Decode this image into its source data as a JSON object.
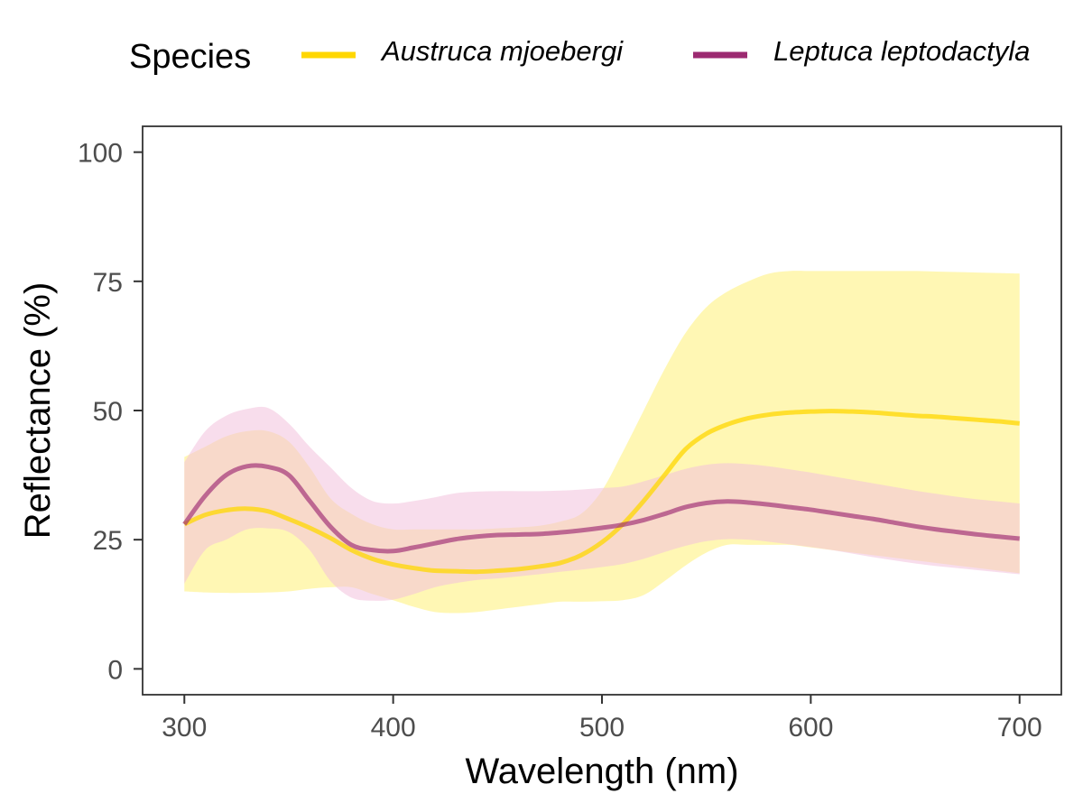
{
  "chart_data": {
    "type": "line",
    "xlabel": "Wavelength (nm)",
    "ylabel": "Reflectance (%)",
    "xlim": [
      280,
      720
    ],
    "ylim": [
      -5,
      105
    ],
    "x_ticks": [
      300,
      400,
      500,
      600,
      700
    ],
    "y_ticks": [
      0,
      25,
      50,
      75,
      100
    ],
    "grid": false,
    "legend": {
      "title": "Species",
      "position": "top"
    },
    "series": [
      {
        "name": "Austruca mjoebergi",
        "color": "#FFD700",
        "band_color": "#FFF176",
        "x": [
          300,
          310,
          320,
          330,
          340,
          350,
          360,
          370,
          380,
          390,
          400,
          410,
          420,
          430,
          440,
          450,
          460,
          470,
          480,
          490,
          500,
          510,
          520,
          530,
          540,
          550,
          560,
          570,
          580,
          590,
          600,
          610,
          620,
          630,
          640,
          650,
          660,
          670,
          680,
          690,
          700
        ],
        "mean": [
          28,
          29.8,
          30.7,
          31,
          30.5,
          29,
          27.3,
          25.3,
          23,
          21.3,
          20.2,
          19.5,
          19,
          18.9,
          18.8,
          19,
          19.3,
          19.8,
          20.5,
          22,
          24.5,
          28,
          32.5,
          37.5,
          42.5,
          45.5,
          47.3,
          48.5,
          49.2,
          49.6,
          49.8,
          49.9,
          49.8,
          49.6,
          49.3,
          49,
          48.8,
          48.5,
          48.2,
          47.9,
          47.5
        ],
        "lower": [
          15,
          14.8,
          14.7,
          14.7,
          14.8,
          15,
          15.5,
          15.8,
          15.8,
          14.5,
          13.3,
          12,
          11,
          10.8,
          11,
          11.5,
          12,
          12.5,
          13,
          13,
          13.1,
          13.3,
          14.3,
          17,
          20,
          22.5,
          24,
          24,
          24,
          24,
          23.5,
          23,
          22.5,
          22,
          21.5,
          21,
          20.5,
          20,
          19.5,
          19,
          18.5
        ],
        "upper": [
          41,
          43,
          45,
          46,
          46,
          44,
          39,
          33,
          30,
          28,
          27,
          27,
          27,
          27,
          27,
          27.2,
          27.4,
          27.7,
          28.5,
          30,
          34.5,
          42,
          50,
          58,
          65,
          70,
          73,
          75,
          76.5,
          77,
          77,
          77,
          77,
          77,
          77,
          77,
          76.9,
          76.8,
          76.7,
          76.6,
          76.5
        ]
      },
      {
        "name": "Leptuca leptodactyla",
        "color": "#9C2A71",
        "band_color": "#F3C1DC",
        "x": [
          300,
          310,
          320,
          330,
          340,
          350,
          360,
          370,
          380,
          390,
          400,
          410,
          420,
          430,
          440,
          450,
          460,
          470,
          480,
          490,
          500,
          510,
          520,
          530,
          540,
          550,
          560,
          570,
          580,
          590,
          600,
          610,
          620,
          630,
          640,
          650,
          660,
          670,
          680,
          690,
          700
        ],
        "mean": [
          28,
          33.5,
          37.5,
          39.2,
          39.1,
          37.5,
          32.5,
          27.5,
          24,
          23,
          22.8,
          23.5,
          24.3,
          25.1,
          25.6,
          25.9,
          26,
          26.1,
          26.4,
          26.8,
          27.3,
          27.9,
          28.8,
          30,
          31.3,
          32.1,
          32.4,
          32.2,
          31.8,
          31.3,
          30.8,
          30.2,
          29.6,
          29,
          28.3,
          27.6,
          27,
          26.5,
          26,
          25.6,
          25.2
        ],
        "lower": [
          16.5,
          23,
          25,
          27,
          27.2,
          26.5,
          23,
          17,
          13.8,
          13.2,
          13.4,
          14.5,
          15.8,
          16.6,
          17.2,
          17.5,
          17.9,
          18.3,
          18.8,
          19.2,
          19.7,
          20.3,
          21.3,
          22.6,
          23.8,
          24.7,
          25.1,
          25,
          24.6,
          24.1,
          23.6,
          23,
          22.3,
          21.6,
          21,
          20.4,
          19.9,
          19.5,
          19.1,
          18.7,
          18.3
        ],
        "upper": [
          40,
          46,
          49,
          50.3,
          50.5,
          47.5,
          43,
          39,
          35,
          32.5,
          32,
          32.5,
          33.2,
          34,
          34.3,
          34.4,
          34.4,
          34.4,
          34.5,
          34.7,
          35,
          35.3,
          36.3,
          37.5,
          38.7,
          39.5,
          39.8,
          39.6,
          39.2,
          38.6,
          38,
          37.3,
          36.6,
          35.9,
          35.2,
          34.5,
          33.9,
          33.3,
          32.8,
          32.4,
          32
        ]
      }
    ]
  }
}
